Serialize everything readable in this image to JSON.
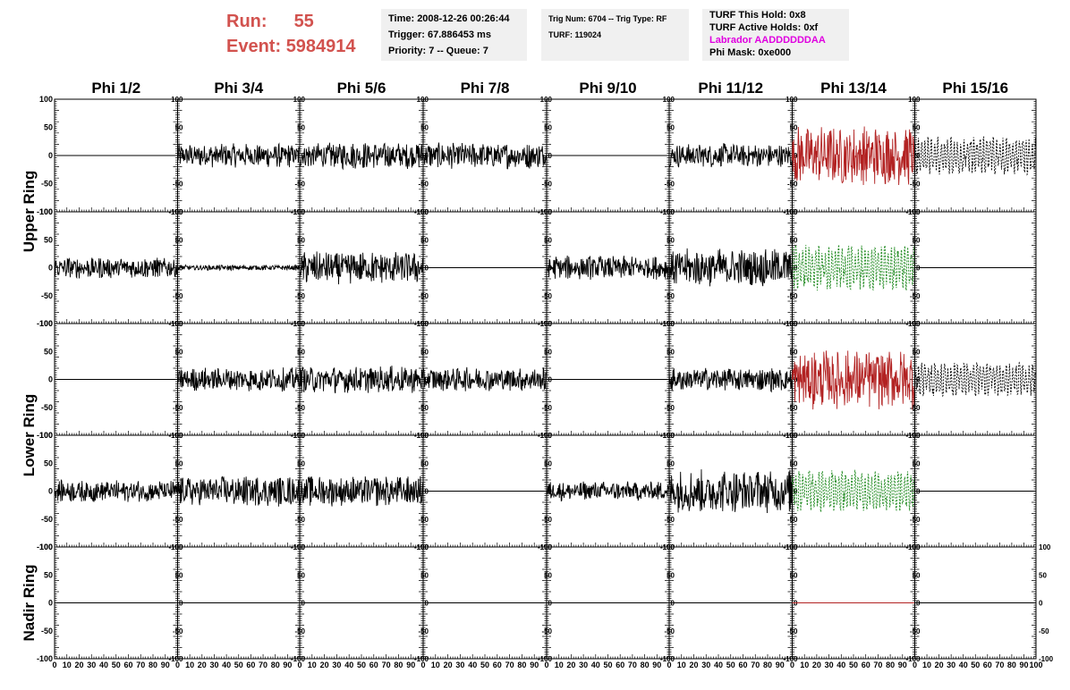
{
  "header": {
    "run_label": "Run:",
    "run_value": "55",
    "event_label": "Event:",
    "event_value": "5984914",
    "time_box": [
      "Time: 2008-12-26 00:26:44",
      "Trigger: 67.886453 ms",
      "Priority: 7 -- Queue: 7"
    ],
    "trig_box": [
      "Trig Num: 6704 -- Trig Type: RF",
      "",
      "TURF: 119024"
    ],
    "turf_box": [
      "TURF This Hold: 0x8",
      "TURF Active Holds: 0xf",
      "Labrador AADDDDDDAA",
      "Phi Mask: 0xe000"
    ]
  },
  "colors": {
    "header_red": "#d2524e",
    "trace_black": "#000000",
    "trace_red": "#b22222",
    "trace_green": "#1f8a1f",
    "labrador_magenta": "#e000e0",
    "box_bg": "#f0f0f0"
  },
  "chart_data": {
    "type": "line",
    "column_titles": [
      "Phi 1/2",
      "Phi 3/4",
      "Phi 5/6",
      "Phi 7/8",
      "Phi 9/10",
      "Phi 11/12",
      "Phi 13/14",
      "Phi 15/16"
    ],
    "row_groups": [
      {
        "label": "Upper Ring",
        "rows": [
          0,
          1
        ]
      },
      {
        "label": "Lower Ring",
        "rows": [
          2,
          3
        ]
      },
      {
        "label": "Nadir Ring",
        "rows": [
          4
        ]
      }
    ],
    "xlim": [
      0,
      100
    ],
    "ylim": [
      -100,
      100
    ],
    "x_tick_labels": [
      "0",
      "10",
      "20",
      "30",
      "40",
      "50",
      "60",
      "70",
      "80",
      "90",
      "100"
    ],
    "y_tick_labels": [
      "-100",
      "-50",
      "0",
      "50",
      "100"
    ],
    "trace_style_note": "flat = zero line; noise amplitude in data units",
    "panels": [
      [
        {
          "kind": "flat",
          "color": "black"
        },
        {
          "kind": "noise",
          "amp": 22,
          "color": "black"
        },
        {
          "kind": "noise",
          "amp": 25,
          "color": "black"
        },
        {
          "kind": "noise",
          "amp": 24,
          "color": "black"
        },
        {
          "kind": "flat",
          "color": "black"
        },
        {
          "kind": "noise",
          "amp": 22,
          "color": "black"
        },
        {
          "kind": "noise",
          "amp": 55,
          "color": "red"
        },
        {
          "kind": "noise",
          "amp": 45,
          "color": "black",
          "dashed": true
        }
      ],
      [
        {
          "kind": "noise",
          "amp": 20,
          "color": "black"
        },
        {
          "kind": "noise",
          "amp": 5,
          "color": "black"
        },
        {
          "kind": "noise",
          "amp": 30,
          "color": "black"
        },
        {
          "kind": "flat",
          "color": "black"
        },
        {
          "kind": "noise",
          "amp": 22,
          "color": "black"
        },
        {
          "kind": "noise",
          "amp": 35,
          "color": "black"
        },
        {
          "kind": "noise",
          "amp": 55,
          "color": "green",
          "dashed": true
        },
        {
          "kind": "flat",
          "color": "black"
        }
      ],
      [
        {
          "kind": "flat",
          "color": "black"
        },
        {
          "kind": "noise",
          "amp": 22,
          "color": "black"
        },
        {
          "kind": "noise",
          "amp": 25,
          "color": "black"
        },
        {
          "kind": "noise",
          "amp": 22,
          "color": "black"
        },
        {
          "kind": "flat",
          "color": "black"
        },
        {
          "kind": "noise",
          "amp": 22,
          "color": "black"
        },
        {
          "kind": "noise",
          "amp": 55,
          "color": "red"
        },
        {
          "kind": "noise",
          "amp": 40,
          "color": "black",
          "dashed": true
        }
      ],
      [
        {
          "kind": "noise",
          "amp": 20,
          "color": "black"
        },
        {
          "kind": "noise",
          "amp": 28,
          "color": "black"
        },
        {
          "kind": "noise",
          "amp": 28,
          "color": "black"
        },
        {
          "kind": "flat",
          "color": "black"
        },
        {
          "kind": "noise",
          "amp": 18,
          "color": "black"
        },
        {
          "kind": "noise",
          "amp": 40,
          "color": "black"
        },
        {
          "kind": "noise",
          "amp": 50,
          "color": "green",
          "dashed": true
        },
        {
          "kind": "flat",
          "color": "black"
        }
      ],
      [
        {
          "kind": "flat",
          "color": "black"
        },
        {
          "kind": "flat",
          "color": "black"
        },
        {
          "kind": "flat",
          "color": "black"
        },
        {
          "kind": "flat",
          "color": "black"
        },
        {
          "kind": "flat",
          "color": "black"
        },
        {
          "kind": "flat",
          "color": "black"
        },
        {
          "kind": "flat",
          "color": "red"
        },
        {
          "kind": "flat",
          "color": "black"
        }
      ]
    ]
  }
}
